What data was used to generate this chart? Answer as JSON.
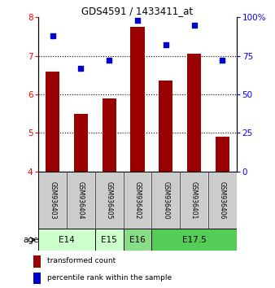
{
  "title": "GDS4591 / 1433411_at",
  "samples": [
    "GSM936403",
    "GSM936404",
    "GSM936405",
    "GSM936402",
    "GSM936400",
    "GSM936401",
    "GSM936406"
  ],
  "red_values": [
    6.6,
    5.5,
    5.9,
    7.75,
    6.35,
    7.05,
    4.9
  ],
  "blue_values": [
    88,
    67,
    72,
    98,
    82,
    95,
    72
  ],
  "ylim_left": [
    4,
    8
  ],
  "ylim_right": [
    0,
    100
  ],
  "yticks_left": [
    4,
    5,
    6,
    7,
    8
  ],
  "yticks_right": [
    0,
    25,
    50,
    75,
    100
  ],
  "ytick_labels_right": [
    "0",
    "25",
    "50",
    "75",
    "100%"
  ],
  "bar_color": "#990000",
  "dot_color": "#0000cc",
  "age_groups": [
    {
      "label": "E14",
      "start": 0,
      "end": 2,
      "color": "#ccffcc"
    },
    {
      "label": "E15",
      "start": 2,
      "end": 3,
      "color": "#ccffcc"
    },
    {
      "label": "E16",
      "start": 3,
      "end": 4,
      "color": "#88dd88"
    },
    {
      "label": "E17.5",
      "start": 4,
      "end": 7,
      "color": "#55cc55"
    }
  ],
  "age_label": "age",
  "legend_red": "transformed count",
  "legend_blue": "percentile rank within the sample",
  "sample_box_color": "#cccccc",
  "bar_width": 0.5,
  "fig_width": 3.38,
  "fig_height": 3.54,
  "dpi": 100
}
